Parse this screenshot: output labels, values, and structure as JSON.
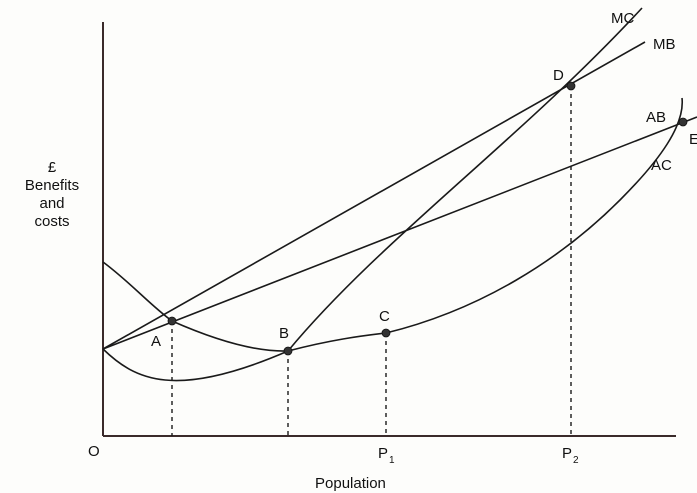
{
  "y_axis_label": [
    "£",
    "Benefits",
    "and",
    "costs"
  ],
  "x_axis_label": "Population",
  "origin_label": "O",
  "curve_labels": {
    "mc": "MC",
    "mb": "MB",
    "ab": "AB",
    "ac": "AC"
  },
  "point_labels": {
    "a": "A",
    "b": "B",
    "c": "C",
    "d": "D",
    "e": "E"
  },
  "x_ticks": {
    "p1": {
      "base": "P",
      "sub": "1"
    },
    "p2": {
      "base": "P",
      "sub": "2"
    }
  }
}
